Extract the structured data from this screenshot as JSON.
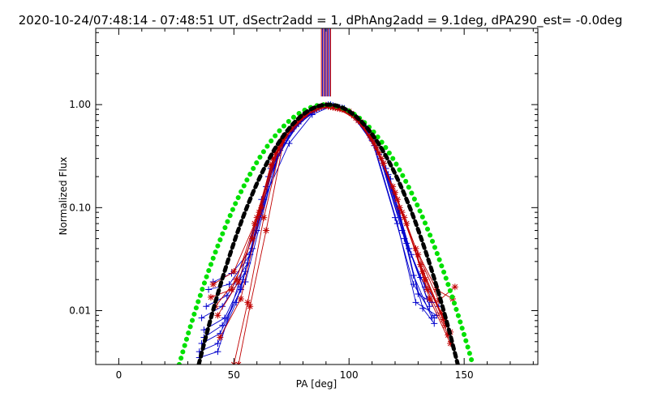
{
  "chart_data": {
    "type": "line",
    "title": "2020-10-24/07:48:14 - 07:48:51 UT, dSectr2add = 1, dPhAng2add = 9.1deg, dPA290_est= -0.0deg",
    "xlabel": "PA [deg]",
    "ylabel": "Normalized Flux",
    "xlim": [
      -10,
      182
    ],
    "ylim": [
      0.003,
      5.5
    ],
    "yscale": "log",
    "xticks": [
      0,
      50,
      100,
      150
    ],
    "xtick_labels": [
      "0",
      "50",
      "100",
      "150"
    ],
    "yticks": [
      0.01,
      0.1,
      1.0
    ],
    "ytick_labels": [
      "0.01",
      "0.10",
      "1.00"
    ],
    "grid": false,
    "legend": "none",
    "vertical_lines": {
      "x": [
        88,
        88.5,
        89,
        89.5,
        90,
        90.5,
        91,
        91.5,
        92
      ],
      "colors": [
        "#c00000",
        "#0000cc",
        "#c00000",
        "#0000cc",
        "#c00000",
        "#0000cc",
        "#c00000",
        "#0000cc",
        "#c00000"
      ],
      "from_y": 1.2,
      "to_y": 5.5
    },
    "series": [
      {
        "color": "#0000cc",
        "marker": "plus",
        "x": [
          35,
          43,
          52,
          62,
          72,
          82,
          91,
          100,
          110,
          120,
          128,
          137
        ],
        "y": [
          0.0035,
          0.004,
          0.018,
          0.12,
          0.45,
          0.82,
          1.0,
          0.85,
          0.45,
          0.08,
          0.018,
          0.0085
        ]
      },
      {
        "color": "#0000cc",
        "marker": "plus",
        "x": [
          36,
          45,
          55,
          64,
          73,
          83,
          92,
          101,
          111,
          121,
          129,
          138
        ],
        "y": [
          0.0085,
          0.011,
          0.024,
          0.16,
          0.5,
          0.85,
          1.0,
          0.82,
          0.4,
          0.07,
          0.012,
          0.009
        ]
      },
      {
        "color": "#0000cc",
        "marker": "plus",
        "x": [
          37,
          46,
          54,
          63,
          74,
          84,
          93,
          102,
          112,
          122,
          130,
          136
        ],
        "y": [
          0.0065,
          0.0085,
          0.02,
          0.12,
          0.42,
          0.8,
          0.98,
          0.8,
          0.38,
          0.09,
          0.0145,
          0.012
        ]
      },
      {
        "color": "#0000cc",
        "marker": "plus",
        "x": [
          38,
          47,
          56,
          65,
          75,
          85,
          93,
          103,
          113,
          123,
          131,
          139
        ],
        "y": [
          0.011,
          0.014,
          0.029,
          0.2,
          0.55,
          0.88,
          0.97,
          0.75,
          0.33,
          0.06,
          0.021,
          0.011
        ]
      },
      {
        "color": "#0000cc",
        "marker": "plus",
        "x": [
          36,
          44,
          53,
          66,
          76,
          86,
          94,
          104,
          114,
          124,
          132,
          137
        ],
        "y": [
          0.0048,
          0.006,
          0.016,
          0.24,
          0.6,
          0.9,
          0.96,
          0.72,
          0.3,
          0.05,
          0.0105,
          0.0075
        ]
      },
      {
        "color": "#0000cc",
        "marker": "plus",
        "x": [
          39,
          48,
          57,
          67,
          77,
          87,
          95,
          105,
          115,
          125,
          133
        ],
        "y": [
          0.016,
          0.018,
          0.035,
          0.26,
          0.62,
          0.93,
          0.95,
          0.7,
          0.27,
          0.045,
          0.017
        ]
      },
      {
        "color": "#0000cc",
        "marker": "plus",
        "x": [
          41,
          49,
          58,
          68,
          78,
          88,
          96,
          106,
          116,
          126,
          134
        ],
        "y": [
          0.019,
          0.023,
          0.04,
          0.3,
          0.65,
          0.95,
          0.94,
          0.66,
          0.24,
          0.04,
          0.013
        ]
      },
      {
        "color": "#0000cc",
        "marker": "plus",
        "x": [
          37,
          45,
          55,
          69,
          79,
          89,
          97,
          107,
          117,
          127,
          135
        ],
        "y": [
          0.0055,
          0.0072,
          0.019,
          0.32,
          0.7,
          0.97,
          0.93,
          0.62,
          0.21,
          0.035,
          0.011
        ]
      },
      {
        "color": "#0000cc",
        "marker": "plus",
        "x": [
          35,
          43,
          51,
          60,
          70,
          80,
          90,
          98,
          108,
          118,
          128,
          136
        ],
        "y": [
          0.004,
          0.0048,
          0.012,
          0.06,
          0.36,
          0.74,
          0.98,
          0.92,
          0.58,
          0.19,
          0.022,
          0.0085
        ]
      },
      {
        "color": "#c00000",
        "marker": "star",
        "x": [
          40,
          49,
          58,
          66,
          75,
          84,
          91,
          100,
          109,
          119,
          129,
          138,
          145
        ],
        "y": [
          0.0135,
          0.016,
          0.05,
          0.26,
          0.58,
          0.88,
          0.96,
          0.86,
          0.5,
          0.16,
          0.04,
          0.016,
          0.013
        ]
      },
      {
        "color": "#c00000",
        "marker": "star",
        "x": [
          41,
          50,
          59,
          67,
          76,
          85,
          92,
          101,
          110,
          120,
          130,
          139,
          146
        ],
        "y": [
          0.018,
          0.024,
          0.07,
          0.3,
          0.62,
          0.9,
          0.95,
          0.82,
          0.46,
          0.14,
          0.035,
          0.0125,
          0.017
        ]
      },
      {
        "color": "#c00000",
        "marker": "star",
        "x": [
          42,
          51,
          60,
          68,
          77,
          86,
          93,
          102,
          111,
          121,
          131,
          140,
          144
        ],
        "y": [
          0.011,
          0.02,
          0.08,
          0.34,
          0.66,
          0.92,
          0.94,
          0.78,
          0.42,
          0.12,
          0.028,
          0.0095,
          0.0062
        ]
      },
      {
        "color": "#c00000",
        "marker": "star",
        "x": [
          43,
          52,
          61,
          69,
          78,
          87,
          94,
          103,
          112,
          122,
          132,
          141
        ],
        "y": [
          0.009,
          0.019,
          0.09,
          0.38,
          0.7,
          0.94,
          0.93,
          0.74,
          0.38,
          0.1,
          0.024,
          0.0082
        ]
      },
      {
        "color": "#c00000",
        "marker": "star",
        "x": [
          44,
          53,
          62,
          70,
          79,
          88,
          95,
          104,
          113,
          123,
          133,
          142
        ],
        "y": [
          0.0055,
          0.013,
          0.1,
          0.42,
          0.74,
          0.96,
          0.92,
          0.7,
          0.34,
          0.09,
          0.02,
          0.0072
        ]
      },
      {
        "color": "#c00000",
        "marker": "star",
        "x": [
          50,
          56,
          63,
          71,
          80,
          89,
          96,
          105,
          114,
          124,
          134,
          143
        ],
        "y": [
          0.003,
          0.012,
          0.08,
          0.45,
          0.78,
          0.98,
          0.91,
          0.68,
          0.3,
          0.08,
          0.016,
          0.0058
        ]
      },
      {
        "color": "#c00000",
        "marker": "star",
        "x": [
          52,
          57,
          64,
          72,
          81,
          90,
          97,
          106,
          115,
          125,
          135,
          144
        ],
        "y": [
          0.003,
          0.011,
          0.06,
          0.5,
          0.8,
          0.99,
          0.9,
          0.64,
          0.27,
          0.07,
          0.013,
          0.0048
        ]
      }
    ],
    "model_curves": [
      {
        "color": "#00e000",
        "style": "dotted-thick",
        "center": 90,
        "sigma": 18.7
      },
      {
        "color": "#000000",
        "style": "dashed-thick",
        "center": 91,
        "sigma": 16.5
      }
    ]
  }
}
